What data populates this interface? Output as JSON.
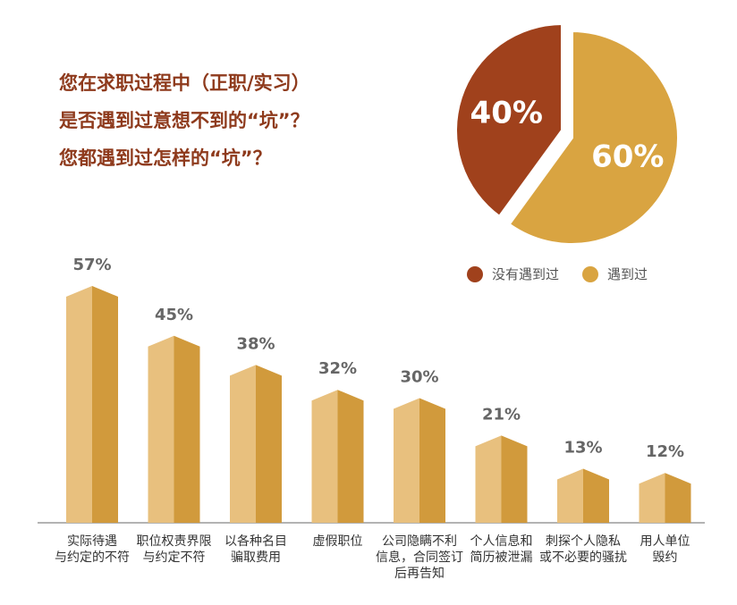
{
  "title_lines": [
    "您在求职过程中（正职/实习）",
    "是否遇到过意想不到的“坑”？",
    "您都遇到过怎样的“坑”？"
  ],
  "colors": {
    "title": "#8e3a1c",
    "pie_no": "#a0411c",
    "pie_yes": "#d9a441",
    "bar_light": "#e8c07e",
    "bar_dark": "#d19a3c",
    "value_label": "#666666"
  },
  "chart_data": [
    {
      "type": "pie",
      "slices": [
        {
          "label": "没有遇到过",
          "value": 40,
          "display": "40%"
        },
        {
          "label": "遇到过",
          "value": 60,
          "display": "60%"
        }
      ],
      "legend_position": "bottom"
    },
    {
      "type": "bar",
      "categories": [
        [
          "实际待遇",
          "与约定的不符"
        ],
        [
          "职位权责界限",
          "与约定不符"
        ],
        [
          "以各种名目",
          "骗取费用"
        ],
        [
          "虚假职位"
        ],
        [
          "公司隐瞒不利",
          "信息，合同签订",
          "后再告知"
        ],
        [
          "个人信息和",
          "简历被泄漏"
        ],
        [
          "刺探个人隐私",
          "或不必要的骚扰"
        ],
        [
          "用人单位",
          "毁约"
        ]
      ],
      "values": [
        57,
        45,
        38,
        32,
        30,
        21,
        13,
        12
      ],
      "value_labels": [
        "57%",
        "45%",
        "38%",
        "32%",
        "30%",
        "21%",
        "13%",
        "12%"
      ],
      "ylim": [
        0,
        60
      ],
      "grid": false
    }
  ]
}
